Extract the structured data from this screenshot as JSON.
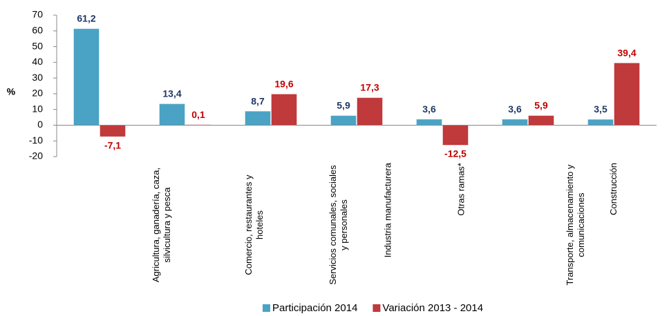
{
  "chart_data": {
    "type": "bar",
    "y_label": "%",
    "categories": [
      "Agricultura, ganadería, caza, silvicultura y pesca",
      "Comercio, restaurantes y hoteles",
      "Servicios comunales, sociales y personales",
      "Industria manufacturera",
      "Otras ramas*",
      "Transporte, almacenamiento y comunicaciones",
      "Construcción"
    ],
    "series": [
      {
        "name": "Participación 2014",
        "color": "#4aa3c4",
        "label_color": "#1f3864",
        "values": [
          61.2,
          13.4,
          8.7,
          5.9,
          3.6,
          3.6,
          3.5
        ],
        "value_labels": [
          "61,2",
          "13,4",
          "8,7",
          "5,9",
          "3,6",
          "3,6",
          "3,5"
        ]
      },
      {
        "name": "Variación 2013 - 2014",
        "color": "#c0393b",
        "label_color": "#c00000",
        "values": [
          -7.1,
          0.1,
          19.6,
          17.3,
          -12.5,
          5.9,
          39.4
        ],
        "value_labels": [
          "-7,1",
          "0,1",
          "19,6",
          "17,3",
          "-12,5",
          "5,9",
          "39,4"
        ]
      }
    ],
    "ylim": [
      -20,
      70
    ],
    "yticks": [
      -20,
      -10,
      0,
      10,
      20,
      30,
      40,
      50,
      60,
      70
    ],
    "grid": false
  }
}
